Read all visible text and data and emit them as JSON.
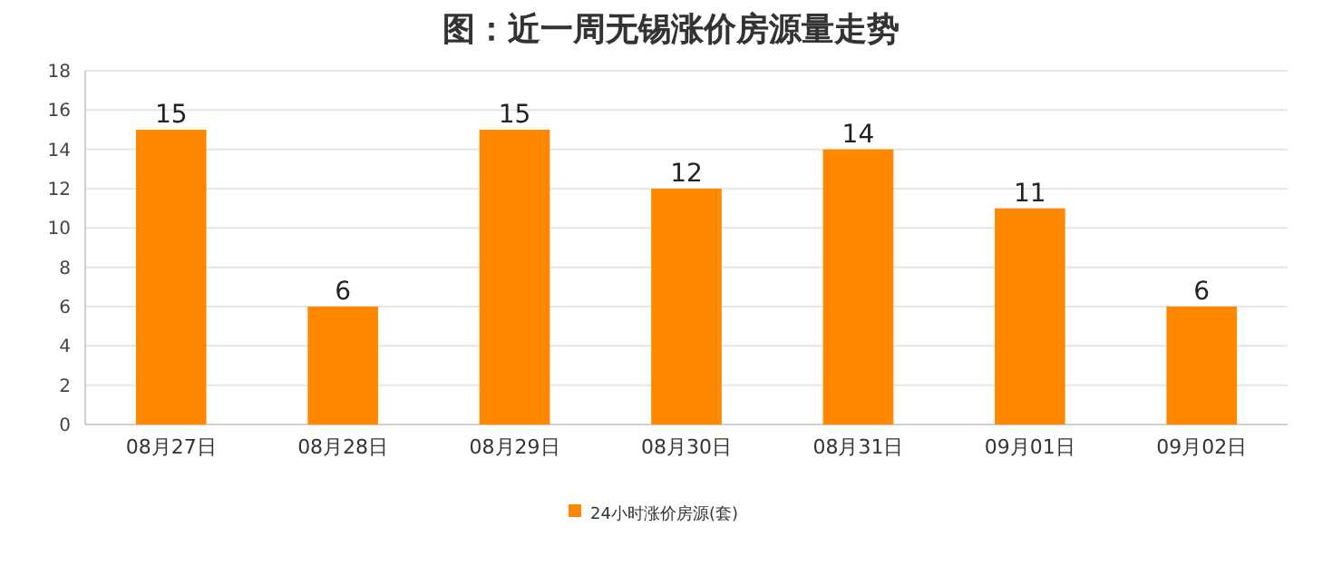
{
  "chart_data": {
    "type": "bar",
    "title": "图：近一周无锡涨价房源量走势",
    "categories": [
      "08月27日",
      "08月28日",
      "08月29日",
      "08月30日",
      "08月31日",
      "09月01日",
      "09月02日"
    ],
    "series": [
      {
        "name": "24小时涨价房源(套)",
        "color": "#ff8800",
        "values": [
          15,
          6,
          15,
          12,
          14,
          11,
          6
        ]
      }
    ],
    "ylim": [
      0,
      18
    ],
    "yticks": [
      0,
      2,
      4,
      6,
      8,
      10,
      12,
      14,
      16,
      18
    ],
    "grid": "y",
    "legend": "bottom",
    "data_labels": true
  }
}
